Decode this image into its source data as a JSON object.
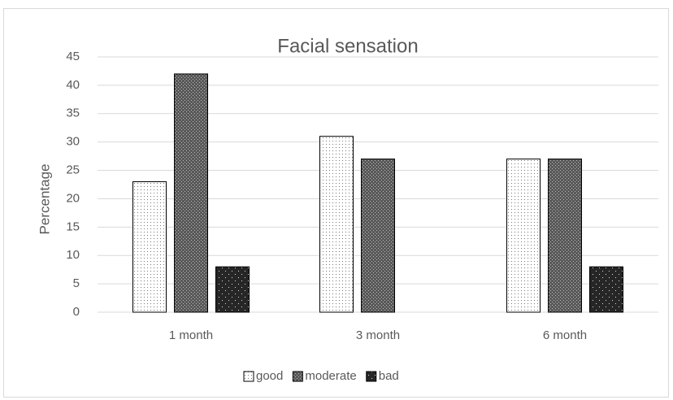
{
  "chart_data": {
    "type": "bar",
    "title": "Facial sensation",
    "y_label": "Percentage",
    "categories": [
      "1 month",
      "3 month",
      "6 month"
    ],
    "series": [
      {
        "name": "good",
        "color": "#ffffff",
        "values": [
          23,
          31,
          27
        ]
      },
      {
        "name": "moderate",
        "color": "#595959",
        "values": [
          42,
          27,
          27
        ]
      },
      {
        "name": "bad",
        "color": "#262626",
        "values": [
          8,
          0,
          8
        ]
      }
    ],
    "ylim": [
      0,
      45
    ],
    "yticks": [
      0,
      5,
      10,
      15,
      20,
      25,
      30,
      35,
      40,
      45
    ],
    "grid": true,
    "legend": "bottom"
  }
}
